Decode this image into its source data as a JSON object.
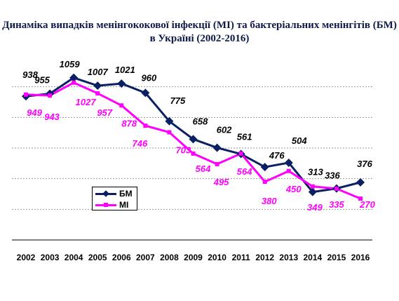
{
  "chart_data": {
    "type": "line",
    "title": "Динаміка випадків менінгококової інфекції (МІ) та бактеріальних менінгітів (БМ) в Україні  (2002-2016)",
    "categories": [
      "2002",
      "2003",
      "2004",
      "2005",
      "2006",
      "2007",
      "2008",
      "2009",
      "2010",
      "2011",
      "2012",
      "2013",
      "2014",
      "2015",
      "2016"
    ],
    "ylim": [
      0,
      1200
    ],
    "grid": true,
    "legend": "left, lower middle",
    "series": [
      {
        "name": "БМ",
        "color": "#0b1f63",
        "values": [
          938,
          955,
          1059,
          1007,
          1021,
          960,
          775,
          658,
          602,
          561,
          476,
          504,
          313,
          336,
          376
        ]
      },
      {
        "name": "МІ",
        "color": "#ff00ff",
        "values": [
          949,
          943,
          1027,
          957,
          878,
          746,
          703,
          564,
          495,
          564,
          380,
          450,
          349,
          335,
          270
        ]
      }
    ]
  }
}
